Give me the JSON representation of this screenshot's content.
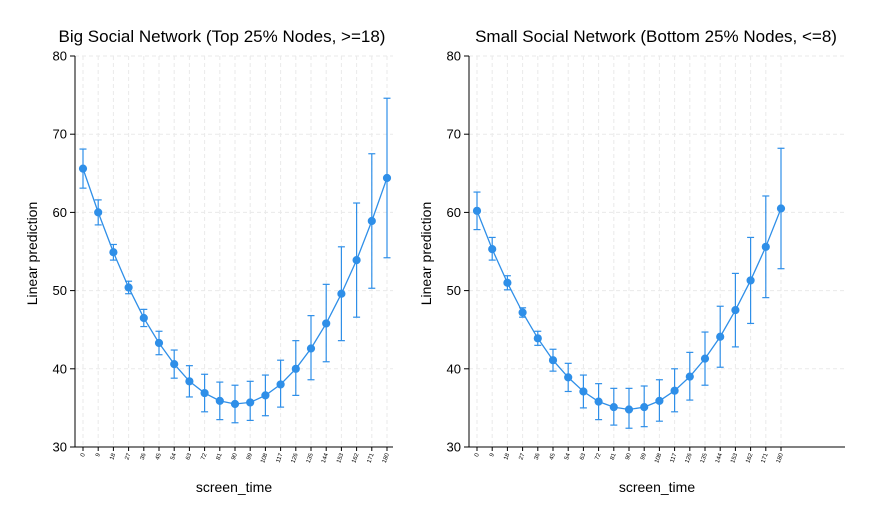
{
  "chart_data": [
    {
      "type": "line",
      "title": "Big Social Network (Top 25% Nodes, >=18)",
      "xlabel": "screen_time",
      "ylabel": "Linear prediction",
      "ylim": [
        30,
        80
      ],
      "yticks": [
        30,
        40,
        50,
        60,
        70,
        80
      ],
      "grid": true,
      "color": "#2f8fe8",
      "categories": [
        "0",
        "9",
        "18",
        "27",
        "36",
        "45",
        "54",
        "63",
        "72",
        "81",
        "90",
        "99",
        "108",
        "117",
        "126",
        "135",
        "144",
        "153",
        "162",
        "171",
        "180"
      ],
      "values": [
        65.6,
        60.0,
        54.9,
        50.4,
        46.5,
        43.3,
        40.6,
        38.4,
        36.9,
        35.9,
        35.5,
        35.7,
        36.6,
        38.0,
        40.0,
        42.6,
        45.8,
        49.6,
        53.9,
        58.9,
        64.4
      ],
      "ci_lower": [
        63.1,
        58.4,
        53.9,
        49.6,
        45.4,
        41.8,
        38.8,
        36.4,
        34.5,
        33.5,
        33.1,
        33.4,
        34.0,
        35.1,
        36.6,
        38.6,
        40.9,
        43.6,
        46.6,
        50.3,
        54.2
      ],
      "ci_upper": [
        68.1,
        61.6,
        55.9,
        51.2,
        47.6,
        44.8,
        42.4,
        40.4,
        39.3,
        38.3,
        37.9,
        38.4,
        39.2,
        41.1,
        43.6,
        46.8,
        50.8,
        55.6,
        61.2,
        67.5,
        74.6
      ]
    },
    {
      "type": "line",
      "title": "Small Social Network (Bottom 25% Nodes, <=8)",
      "xlabel": "screen_time",
      "ylabel": "Linear prediction",
      "ylim": [
        30,
        80
      ],
      "yticks": [
        30,
        40,
        50,
        60,
        70,
        80
      ],
      "grid": true,
      "color": "#2f8fe8",
      "categories": [
        "0",
        "9",
        "18",
        "27",
        "36",
        "45",
        "54",
        "63",
        "72",
        "81",
        "90",
        "99",
        "108",
        "117",
        "126",
        "135",
        "144",
        "153",
        "162",
        "171",
        "180"
      ],
      "values": [
        60.2,
        55.3,
        51.0,
        47.2,
        43.9,
        41.1,
        38.9,
        37.1,
        35.8,
        35.1,
        34.8,
        35.1,
        35.9,
        37.2,
        39.0,
        41.3,
        44.1,
        47.5,
        51.3,
        55.6,
        60.5
      ],
      "ci_lower": [
        57.8,
        53.9,
        50.1,
        46.6,
        43.0,
        39.7,
        37.1,
        35.0,
        33.5,
        32.8,
        32.4,
        32.6,
        33.3,
        34.5,
        36.0,
        37.9,
        40.2,
        42.8,
        45.8,
        49.1,
        52.8
      ],
      "ci_upper": [
        62.6,
        56.8,
        51.9,
        47.8,
        44.8,
        42.5,
        40.7,
        39.2,
        38.1,
        37.5,
        37.5,
        37.8,
        38.6,
        40.0,
        42.1,
        44.7,
        48.0,
        52.2,
        56.8,
        62.1,
        68.2
      ]
    }
  ]
}
